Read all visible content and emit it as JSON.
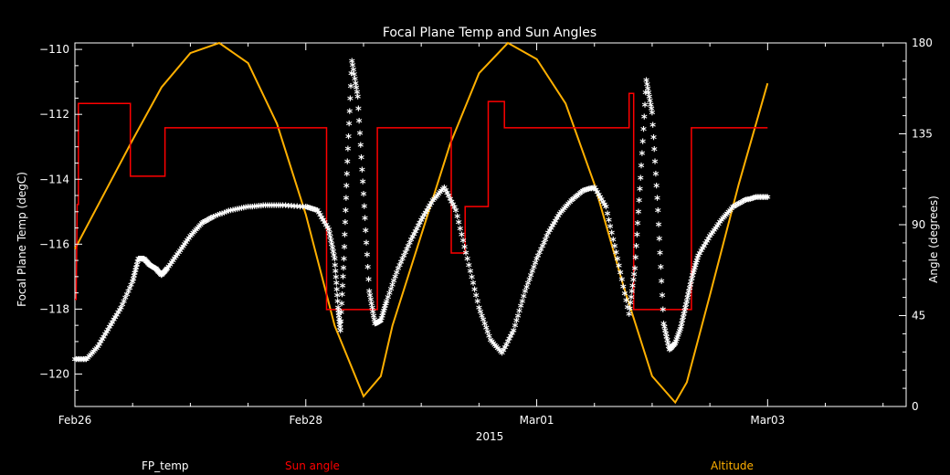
{
  "chart_data": {
    "type": "line",
    "title": "Focal Plane Temp and Sun Angles",
    "xlabel": "2015",
    "ylabel_left": "Focal Plane Temp (degC)",
    "ylabel_right": "Angle (degrees)",
    "x_tick_labels": [
      "Feb26",
      "Feb28",
      "Mar01",
      "Mar03"
    ],
    "x_tick_positions": [
      0,
      2,
      4,
      6
    ],
    "xlim": [
      0,
      7.2
    ],
    "ylim_left": [
      -121,
      -109.8
    ],
    "ylim_right": [
      0,
      180
    ],
    "y_left_ticks": [
      -110,
      -112,
      -114,
      -116,
      -118,
      -120
    ],
    "y_left_tick_labels": [
      "−110",
      "−112",
      "−114",
      "−116",
      "−118",
      "−120"
    ],
    "y_right_ticks": [
      0,
      45,
      90,
      135,
      180
    ],
    "y_right_tick_labels": [
      "0",
      "45",
      "90",
      "135",
      "180"
    ],
    "series": [
      {
        "name": "FP_temp",
        "axis": "left",
        "color": "#ffffff",
        "marker": "asterisk",
        "x": [
          0.0,
          0.1,
          0.2,
          0.3,
          0.4,
          0.5,
          0.55,
          0.6,
          0.65,
          0.7,
          0.75,
          0.8,
          0.9,
          1.0,
          1.1,
          1.2,
          1.35,
          1.5,
          1.65,
          1.8,
          2.0,
          2.1,
          2.2,
          2.25,
          2.28,
          2.3,
          2.33,
          2.36,
          2.4,
          2.45,
          2.5,
          2.55,
          2.6,
          2.65,
          2.7,
          2.8,
          2.9,
          3.0,
          3.1,
          3.2,
          3.3,
          3.4,
          3.5,
          3.6,
          3.7,
          3.8,
          3.9,
          4.0,
          4.1,
          4.2,
          4.3,
          4.4,
          4.5,
          4.6,
          4.7,
          4.8,
          4.85,
          4.9,
          4.95,
          5.0,
          5.05,
          5.1,
          5.15,
          5.2,
          5.25,
          5.3,
          5.35,
          5.4,
          5.5,
          5.6,
          5.7,
          5.8,
          5.9,
          6.0
        ],
        "y": [
          -119.6,
          -119.6,
          -119.2,
          -118.6,
          -118.0,
          -117.2,
          -116.5,
          -116.5,
          -116.7,
          -116.8,
          -117.0,
          -116.8,
          -116.3,
          -115.8,
          -115.4,
          -115.2,
          -115.0,
          -114.9,
          -114.85,
          -114.85,
          -114.9,
          -115.0,
          -115.6,
          -116.5,
          -118.0,
          -118.7,
          -116.5,
          -113.5,
          -110.4,
          -111.5,
          -114.5,
          -117.5,
          -118.5,
          -118.4,
          -117.8,
          -116.8,
          -116.0,
          -115.3,
          -114.7,
          -114.3,
          -115.0,
          -116.5,
          -118.0,
          -119.0,
          -119.4,
          -118.7,
          -117.5,
          -116.5,
          -115.7,
          -115.1,
          -114.7,
          -114.4,
          -114.3,
          -114.9,
          -116.5,
          -118.2,
          -116.8,
          -114.0,
          -111.0,
          -112.0,
          -115.0,
          -118.5,
          -119.3,
          -119.1,
          -118.6,
          -117.8,
          -117.0,
          -116.4,
          -115.8,
          -115.3,
          -114.9,
          -114.7,
          -114.6,
          -114.6
        ]
      },
      {
        "name": "Sun angle",
        "axis": "right",
        "color": "#ff0000",
        "x": [
          0.0,
          0.01,
          0.02,
          0.03,
          0.03,
          0.06,
          0.06,
          0.48,
          0.48,
          0.5,
          0.5,
          0.78,
          0.78,
          0.82,
          0.82,
          2.18,
          2.18,
          2.54,
          2.54,
          2.62,
          2.62,
          3.2,
          3.2,
          3.26,
          3.26,
          3.38,
          3.38,
          3.58,
          3.58,
          3.62,
          3.62,
          3.72,
          3.72,
          4.8,
          4.8,
          4.84,
          4.84,
          5.27,
          5.27,
          5.34,
          5.34,
          6.0
        ],
        "y": [
          53,
          53,
          100,
          100,
          150,
          150,
          150,
          150,
          114,
          114,
          114,
          114,
          138,
          138,
          138,
          138,
          48,
          48,
          48,
          48,
          138,
          138,
          138,
          138,
          76,
          76,
          99,
          99,
          151,
          151,
          151,
          151,
          138,
          138,
          155,
          155,
          48,
          48,
          48,
          48,
          138,
          138
        ]
      },
      {
        "name": "Altitude",
        "axis": "right",
        "color": "#ffb000",
        "x": [
          0.0,
          0.25,
          0.5,
          0.75,
          1.0,
          1.25,
          1.5,
          1.75,
          2.0,
          2.25,
          2.5,
          2.65,
          2.75,
          3.0,
          3.25,
          3.5,
          3.75,
          4.0,
          4.25,
          4.5,
          4.75,
          5.0,
          5.2,
          5.3,
          5.5,
          5.75,
          6.0
        ],
        "y": [
          78,
          105,
          132,
          158,
          175,
          180,
          170,
          140,
          95,
          40,
          5,
          15,
          40,
          85,
          130,
          165,
          180,
          172,
          150,
          110,
          60,
          15,
          2,
          12,
          55,
          110,
          160
        ]
      }
    ],
    "legend": [
      {
        "label": "FP_temp",
        "color": "#ffffff",
        "position": "bottom-left"
      },
      {
        "label": "Sun angle",
        "color": "#ff0000",
        "position": "bottom-center"
      },
      {
        "label": "Altitude",
        "color": "#ffb000",
        "position": "bottom-right"
      }
    ],
    "grid": false
  }
}
